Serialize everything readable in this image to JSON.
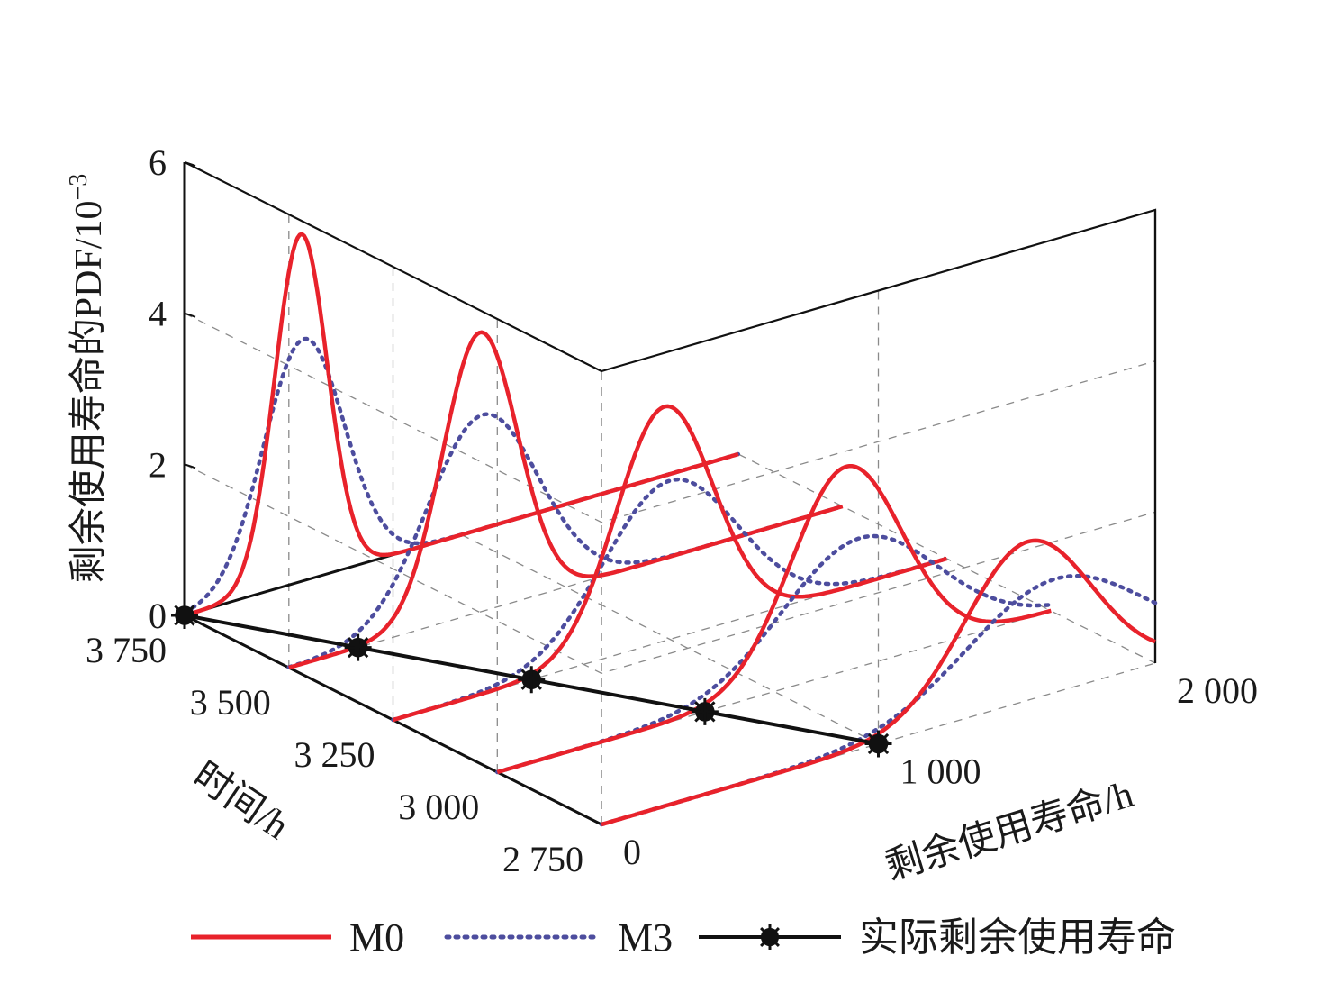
{
  "chart_data": {
    "type": "line",
    "subtype": "3d-waterfall",
    "title": "",
    "zlabel": "剩余使用寿命的PDF/10",
    "zlabel_exponent": "−3",
    "ylabel": "时间/h",
    "xlabel": "剩余使用寿命/h",
    "z_ticks": [
      0,
      2,
      4,
      6
    ],
    "z_tick_labels": [
      "0",
      "2",
      "4",
      "6"
    ],
    "zlim": [
      0,
      6
    ],
    "y_ticks": [
      3750,
      3500,
      3250,
      3000,
      2750
    ],
    "y_tick_labels": [
      "3 750",
      "3 500",
      "3 250",
      "3 000",
      "2 750"
    ],
    "ylim": [
      2750,
      3750
    ],
    "x_ticks": [
      0,
      1000,
      2000
    ],
    "x_tick_labels": [
      "0",
      "1 000",
      "2 000"
    ],
    "xlim": [
      0,
      2000
    ],
    "grid": true,
    "legend_position": "bottom",
    "slices": [
      {
        "time": 3750,
        "actual_rul": 0,
        "m0": {
          "mean": 420,
          "sd": 95,
          "peak": 4.6
        },
        "m3": {
          "mean": 430,
          "sd": 145,
          "peak": 3.2
        }
      },
      {
        "time": 3500,
        "actual_rul": 250,
        "m0": {
          "mean": 690,
          "sd": 135,
          "peak": 3.7
        },
        "m3": {
          "mean": 700,
          "sd": 200,
          "peak": 2.6
        }
      },
      {
        "time": 3250,
        "actual_rul": 500,
        "m0": {
          "mean": 980,
          "sd": 175,
          "peak": 3.1
        },
        "m3": {
          "mean": 1000,
          "sd": 240,
          "peak": 2.1
        }
      },
      {
        "time": 3000,
        "actual_rul": 750,
        "m0": {
          "mean": 1260,
          "sd": 200,
          "peak": 2.7
        },
        "m3": {
          "mean": 1310,
          "sd": 280,
          "peak": 1.7
        }
      },
      {
        "time": 2750,
        "actual_rul": 1000,
        "m0": {
          "mean": 1540,
          "sd": 230,
          "peak": 2.1
        },
        "m3": {
          "mean": 1640,
          "sd": 320,
          "peak": 1.5
        }
      }
    ],
    "series": [
      {
        "name": "M0",
        "color": "#e8222b",
        "style": "solid"
      },
      {
        "name": "M3",
        "color": "#4d4d9e",
        "style": "dotted"
      },
      {
        "name": "实际剩余使用寿命",
        "color": "#111111",
        "style": "solid-with-star-markers"
      }
    ]
  }
}
